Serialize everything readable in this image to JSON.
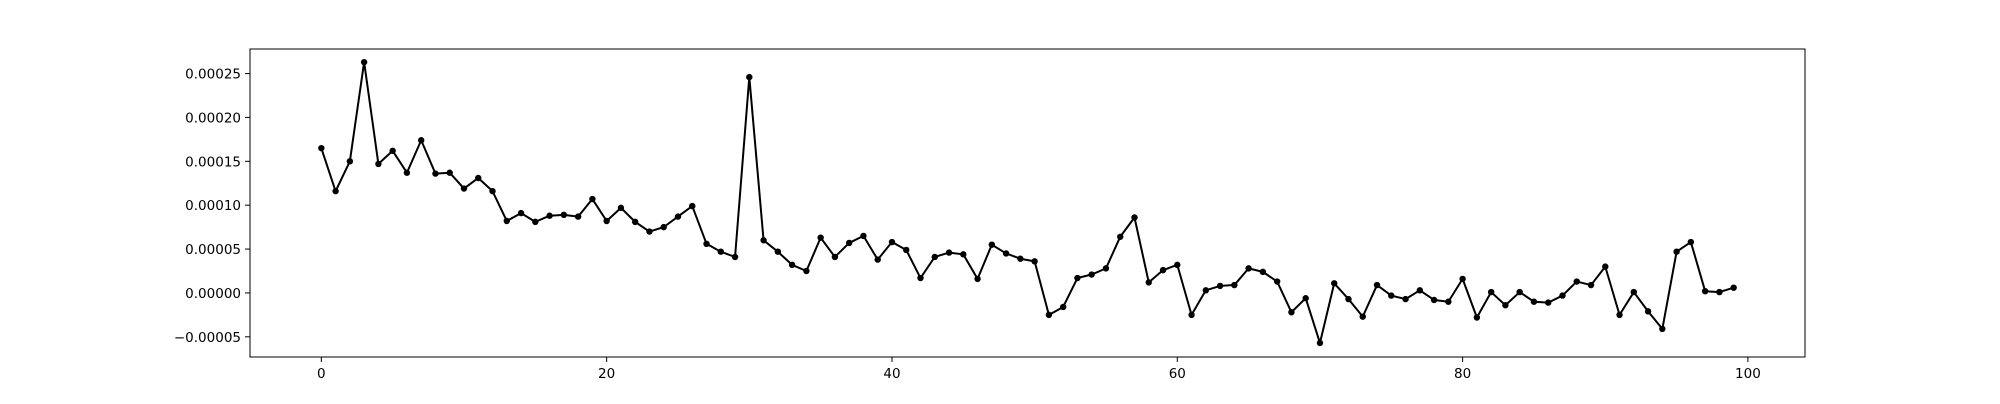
{
  "chart_data": {
    "type": "line",
    "title": "",
    "xlabel": "",
    "ylabel": "",
    "xlim": [
      -5,
      104
    ],
    "ylim": [
      -7.3e-05,
      0.000278
    ],
    "grid": false,
    "x_ticks": [
      0,
      20,
      40,
      60,
      80,
      100
    ],
    "x_tick_labels": [
      "0",
      "20",
      "40",
      "60",
      "80",
      "100"
    ],
    "y_ticks": [
      -5e-05,
      0,
      5e-05,
      0.0001,
      0.00015,
      0.0002,
      0.00025
    ],
    "y_tick_labels": [
      "−0.00005",
      "0.00000",
      "0.00005",
      "0.00010",
      "0.00015",
      "0.00020",
      "0.00025"
    ],
    "line_color": "#000000",
    "marker": "dot",
    "series": [
      {
        "x": [
          0,
          1,
          2,
          3,
          4,
          5,
          6,
          7,
          8,
          9,
          10,
          11,
          12,
          13,
          14,
          15,
          16,
          17,
          18,
          19,
          20,
          21,
          22,
          23,
          24,
          25,
          26,
          27,
          28,
          29,
          30,
          31,
          32,
          33,
          34,
          35,
          36,
          37,
          38,
          39,
          40,
          41,
          42,
          43,
          44,
          45,
          46,
          47,
          48,
          49,
          50,
          51,
          52,
          53,
          54,
          55,
          56,
          57,
          58,
          59,
          60,
          61,
          62,
          63,
          64,
          65,
          66,
          67,
          68,
          69,
          70,
          71,
          72,
          73,
          74,
          75,
          76,
          77,
          78,
          79,
          80,
          81,
          82,
          83,
          84,
          85,
          86,
          87,
          88,
          89,
          90,
          91,
          92,
          93,
          94,
          95,
          96,
          97,
          98,
          99
        ],
        "values": [
          0.000165,
          0.000116,
          0.00015,
          0.000263,
          0.000147,
          0.000162,
          0.000137,
          0.000174,
          0.000136,
          0.000137,
          0.000119,
          0.000131,
          0.000116,
          8.2e-05,
          9.1e-05,
          8.1e-05,
          8.8e-05,
          8.9e-05,
          8.7e-05,
          0.000107,
          8.2e-05,
          9.7e-05,
          8.1e-05,
          7e-05,
          7.5e-05,
          8.7e-05,
          9.9e-05,
          5.6e-05,
          4.7e-05,
          4.1e-05,
          0.000246,
          6e-05,
          4.7e-05,
          3.2e-05,
          2.5e-05,
          6.3e-05,
          4.1e-05,
          5.7e-05,
          6.5e-05,
          3.8e-05,
          5.8e-05,
          4.9e-05,
          1.7e-05,
          4.1e-05,
          4.6e-05,
          4.4e-05,
          1.6e-05,
          5.5e-05,
          4.5e-05,
          3.9e-05,
          3.6e-05,
          -2.5e-05,
          -1.6e-05,
          1.7e-05,
          2.1e-05,
          2.8e-05,
          6.4e-05,
          8.6e-05,
          1.2e-05,
          2.6e-05,
          3.2e-05,
          -2.5e-05,
          3e-06,
          8e-06,
          9e-06,
          2.8e-05,
          2.4e-05,
          1.3e-05,
          -2.2e-05,
          -6e-06,
          -5.7e-05,
          1.1e-05,
          -7e-06,
          -2.7e-05,
          9e-06,
          -3e-06,
          -7e-06,
          3e-06,
          -8e-06,
          -1e-05,
          1.6e-05,
          -2.8e-05,
          1e-06,
          -1.4e-05,
          1e-06,
          -1e-05,
          -1.1e-05,
          -3e-06,
          1.3e-05,
          9e-06,
          3e-05,
          -2.5e-05,
          1e-06,
          -2.1e-05,
          -4.1e-05,
          4.7e-05,
          5.8e-05,
          2e-06,
          1e-06,
          6e-06
        ]
      }
    ]
  }
}
